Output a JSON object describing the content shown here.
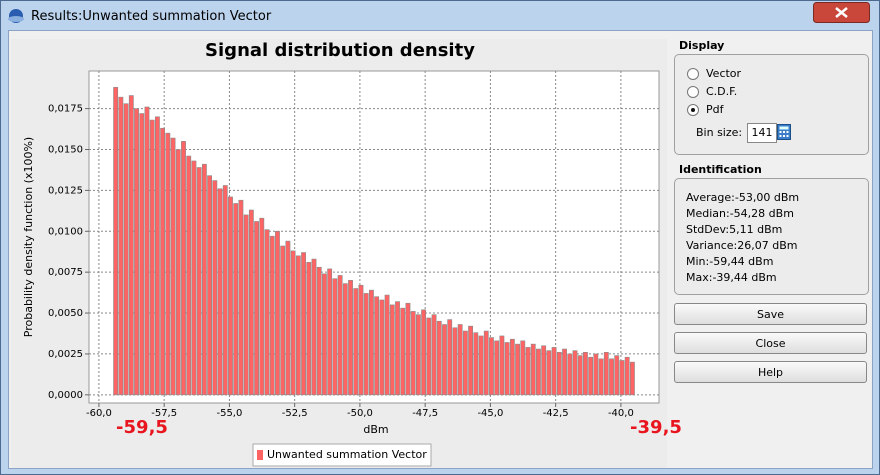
{
  "window": {
    "title": "Results:Unwanted summation Vector"
  },
  "chart_data": {
    "type": "histogram",
    "title": "Signal distribution density",
    "ylabel": "Probability density function (x100%)",
    "xlabel": "dBm",
    "min_label": "-59,5",
    "max_label": "-39,5",
    "bins": [
      -59.44,
      -59.24,
      -59.04,
      -58.84,
      -58.64,
      -58.44,
      -58.24,
      -58.04,
      -57.84,
      -57.64,
      -57.44,
      -57.24,
      -57.04,
      -56.84,
      -56.64,
      -56.44,
      -56.24,
      -56.04,
      -55.84,
      -55.64,
      -55.44,
      -55.24,
      -55.04,
      -54.84,
      -54.64,
      -54.44,
      -54.24,
      -54.04,
      -53.84,
      -53.64,
      -53.44,
      -53.24,
      -53.04,
      -52.84,
      -52.64,
      -52.44,
      -52.24,
      -52.04,
      -51.84,
      -51.64,
      -51.44,
      -51.24,
      -51.04,
      -50.84,
      -50.64,
      -50.44,
      -50.24,
      -50.04,
      -49.84,
      -49.64,
      -49.44,
      -49.24,
      -49.04,
      -48.84,
      -48.64,
      -48.44,
      -48.24,
      -48.04,
      -47.84,
      -47.64,
      -47.44,
      -47.24,
      -47.04,
      -46.84,
      -46.64,
      -46.44,
      -46.24,
      -46.04,
      -45.84,
      -45.64,
      -45.44,
      -45.24,
      -45.04,
      -44.84,
      -44.64,
      -44.44,
      -44.24,
      -44.04,
      -43.84,
      -43.64,
      -43.44,
      -43.24,
      -43.04,
      -42.84,
      -42.64,
      -42.44,
      -42.24,
      -42.04,
      -41.84,
      -41.64,
      -41.44,
      -41.24,
      -41.04,
      -40.84,
      -40.64,
      -40.44,
      -40.24,
      -40.04,
      -39.84,
      -39.64,
      -39.44
    ],
    "series": [
      {
        "name": "Unwanted summation Vector",
        "color": "#ff6464",
        "values": [
          0.0188,
          0.0182,
          0.0178,
          0.0183,
          0.0175,
          0.0172,
          0.0176,
          0.0168,
          0.017,
          0.0163,
          0.016,
          0.0157,
          0.015,
          0.0155,
          0.0146,
          0.0143,
          0.0139,
          0.0141,
          0.0134,
          0.0131,
          0.0126,
          0.0128,
          0.0121,
          0.0117,
          0.0119,
          0.011,
          0.0113,
          0.0106,
          0.0108,
          0.0101,
          0.0097,
          0.01,
          0.0091,
          0.0094,
          0.0088,
          0.0085,
          0.0087,
          0.0081,
          0.0083,
          0.0078,
          0.0074,
          0.0077,
          0.0071,
          0.0073,
          0.0068,
          0.007,
          0.0065,
          0.0067,
          0.0062,
          0.0064,
          0.006,
          0.0058,
          0.0061,
          0.0055,
          0.0057,
          0.0053,
          0.0056,
          0.0051,
          0.0049,
          0.0052,
          0.0047,
          0.0049,
          0.0045,
          0.0043,
          0.0046,
          0.0041,
          0.0043,
          0.0039,
          0.0042,
          0.0038,
          0.0036,
          0.0039,
          0.0035,
          0.0033,
          0.0036,
          0.0032,
          0.0034,
          0.0031,
          0.0033,
          0.0029,
          0.0031,
          0.0028,
          0.003,
          0.0027,
          0.0029,
          0.0026,
          0.0028,
          0.0025,
          0.0027,
          0.0024,
          0.0026,
          0.0023,
          0.0025,
          0.0022,
          0.0026,
          0.0022,
          0.0024,
          0.0021,
          0.0023,
          0.002
        ]
      }
    ],
    "xlim": [
      -60.38,
      -38.54
    ],
    "ylim": [
      -0.0005,
      0.0198
    ],
    "xticks": [
      {
        "value": -60,
        "label": "-60,0"
      },
      {
        "value": -57.5,
        "label": "-57,5"
      },
      {
        "value": -55,
        "label": "-55,0"
      },
      {
        "value": -52.5,
        "label": "-52,5"
      },
      {
        "value": -50,
        "label": "-50,0"
      },
      {
        "value": -47.5,
        "label": "-47,5"
      },
      {
        "value": -45,
        "label": "-45,0"
      },
      {
        "value": -42.5,
        "label": "-42,5"
      },
      {
        "value": -40,
        "label": "-40,0"
      }
    ],
    "yticks": [
      {
        "value": 0,
        "label": "0,0000"
      },
      {
        "value": 0.0025,
        "label": "0,0025"
      },
      {
        "value": 0.005,
        "label": "0,0050"
      },
      {
        "value": 0.0075,
        "label": "0,0075"
      },
      {
        "value": 0.01,
        "label": "0,0100"
      },
      {
        "value": 0.0125,
        "label": "0,0125"
      },
      {
        "value": 0.015,
        "label": "0,0150"
      },
      {
        "value": 0.0175,
        "label": "0,0175"
      }
    ],
    "grid": true
  },
  "display": {
    "title": "Display",
    "options": [
      {
        "label": "Vector",
        "checked": false
      },
      {
        "label": "C.D.F.",
        "checked": false
      },
      {
        "label": "Pdf",
        "checked": true
      }
    ],
    "bin_size_label": "Bin size:",
    "bin_size": "141"
  },
  "identification": {
    "title": "Identification",
    "lines": [
      "Average:-53,00 dBm",
      "Median:-54,28 dBm",
      "StdDev:5,11 dBm",
      "Variance:26,07 dBm",
      "Min:-59,44 dBm",
      "Max:-39,44 dBm"
    ]
  },
  "buttons": [
    "Save",
    "Close",
    "Help"
  ]
}
